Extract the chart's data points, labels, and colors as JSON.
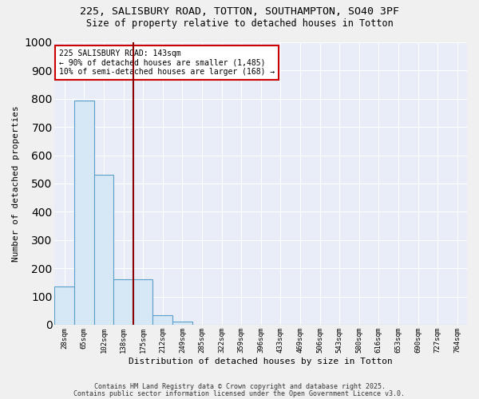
{
  "title_line1": "225, SALISBURY ROAD, TOTTON, SOUTHAMPTON, SO40 3PF",
  "title_line2": "Size of property relative to detached houses in Totton",
  "xlabel": "Distribution of detached houses by size in Totton",
  "ylabel": "Number of detached properties",
  "categories": [
    "28sqm",
    "65sqm",
    "102sqm",
    "138sqm",
    "175sqm",
    "212sqm",
    "249sqm",
    "285sqm",
    "322sqm",
    "359sqm",
    "396sqm",
    "433sqm",
    "469sqm",
    "506sqm",
    "543sqm",
    "580sqm",
    "616sqm",
    "653sqm",
    "690sqm",
    "727sqm",
    "764sqm"
  ],
  "values": [
    135,
    795,
    530,
    160,
    160,
    35,
    10,
    0,
    0,
    0,
    0,
    0,
    0,
    0,
    0,
    0,
    0,
    0,
    0,
    0,
    0
  ],
  "bar_color": "#d6e8f5",
  "bar_edge_color": "#5b9ec9",
  "annotation_text": "225 SALISBURY ROAD: 143sqm\n← 90% of detached houses are smaller (1,485)\n10% of semi-detached houses are larger (168) →",
  "annotation_box_color": "#ffffff",
  "annotation_box_edge_color": "#cc0000",
  "property_line_color": "#8b0000",
  "ylim": [
    0,
    1000
  ],
  "yticks": [
    0,
    100,
    200,
    300,
    400,
    500,
    600,
    700,
    800,
    900,
    1000
  ],
  "background_color": "#e8edf8",
  "grid_color": "#ffffff",
  "fig_background": "#f0f0f0",
  "footnote1": "Contains HM Land Registry data © Crown copyright and database right 2025.",
  "footnote2": "Contains public sector information licensed under the Open Government Licence v3.0."
}
